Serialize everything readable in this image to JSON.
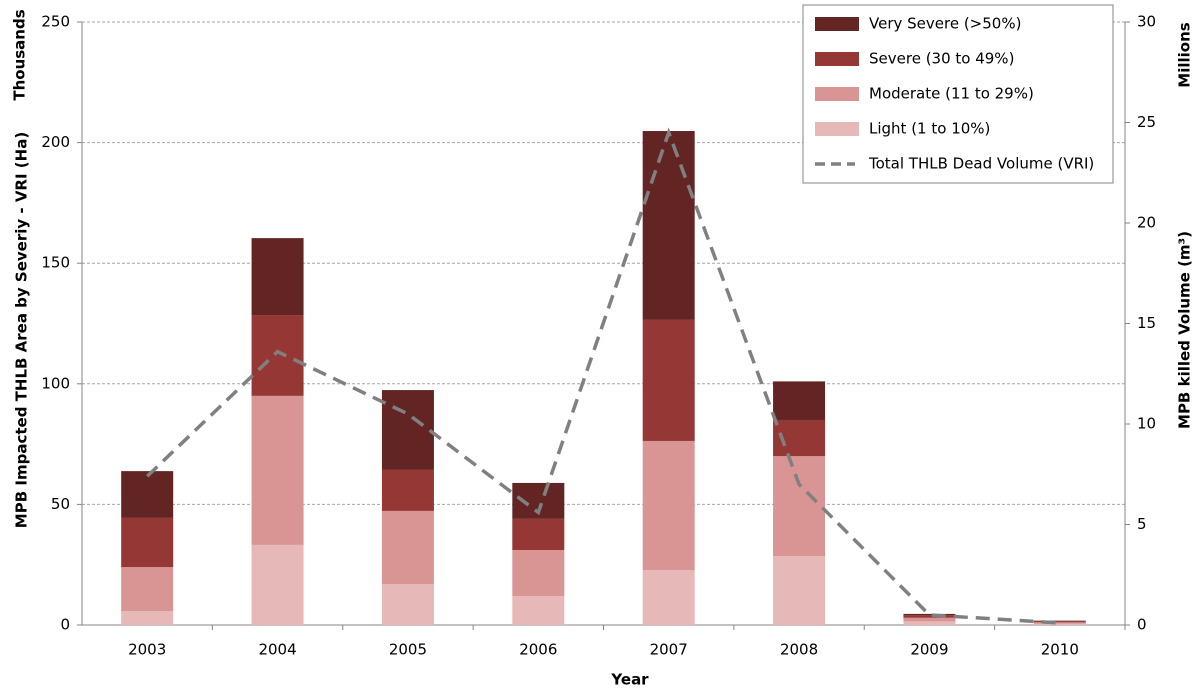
{
  "chart_data": {
    "type": "bar",
    "stacked": true,
    "xlabel": "Year",
    "ylabel": "MPB Impacted THLB Area by Severiy - VRI (Ha)",
    "yunit": "Thousands",
    "y2label": "MPB killed Volume (m³)",
    "y2unit": "Millions",
    "categories": [
      "2003",
      "2004",
      "2005",
      "2006",
      "2007",
      "2008",
      "2009",
      "2010"
    ],
    "series": [
      {
        "name": "Light (1 to 10%)",
        "color": "#e6b9b8",
        "values": [
          5.8,
          33.2,
          17,
          12,
          22.8,
          28.6,
          1.5,
          0.5
        ]
      },
      {
        "name": "Moderate (11 to 29%)",
        "color": "#d99594",
        "values": [
          18.2,
          61.8,
          30.3,
          19.1,
          53.5,
          41.4,
          1.5,
          0.6
        ]
      },
      {
        "name": "Severe (30 to 49%)",
        "color": "#953735",
        "values": [
          20.4,
          33.5,
          17,
          12.9,
          50.2,
          15,
          1,
          0.4
        ]
      },
      {
        "name": "Very Severe (>50%)",
        "color": "#632523",
        "values": [
          19.4,
          31.9,
          33.1,
          14.9,
          78.3,
          16,
          0.6,
          0.3
        ]
      },
      {
        "name": "Total THLB Dead Volume (VRI)",
        "color": "#808080",
        "type": "line",
        "dashed": true,
        "axis": "y2",
        "values": [
          7.4,
          13.6,
          10.5,
          5.6,
          24.5,
          7.0,
          0.5,
          0.1
        ]
      }
    ],
    "ylim": [
      0,
      250
    ],
    "yticks": [
      0,
      50,
      100,
      150,
      200,
      250
    ],
    "y2lim": [
      0,
      30
    ],
    "y2ticks": [
      0,
      5,
      10,
      15,
      20,
      25,
      30
    ],
    "grid": true,
    "legend": "upper right"
  }
}
